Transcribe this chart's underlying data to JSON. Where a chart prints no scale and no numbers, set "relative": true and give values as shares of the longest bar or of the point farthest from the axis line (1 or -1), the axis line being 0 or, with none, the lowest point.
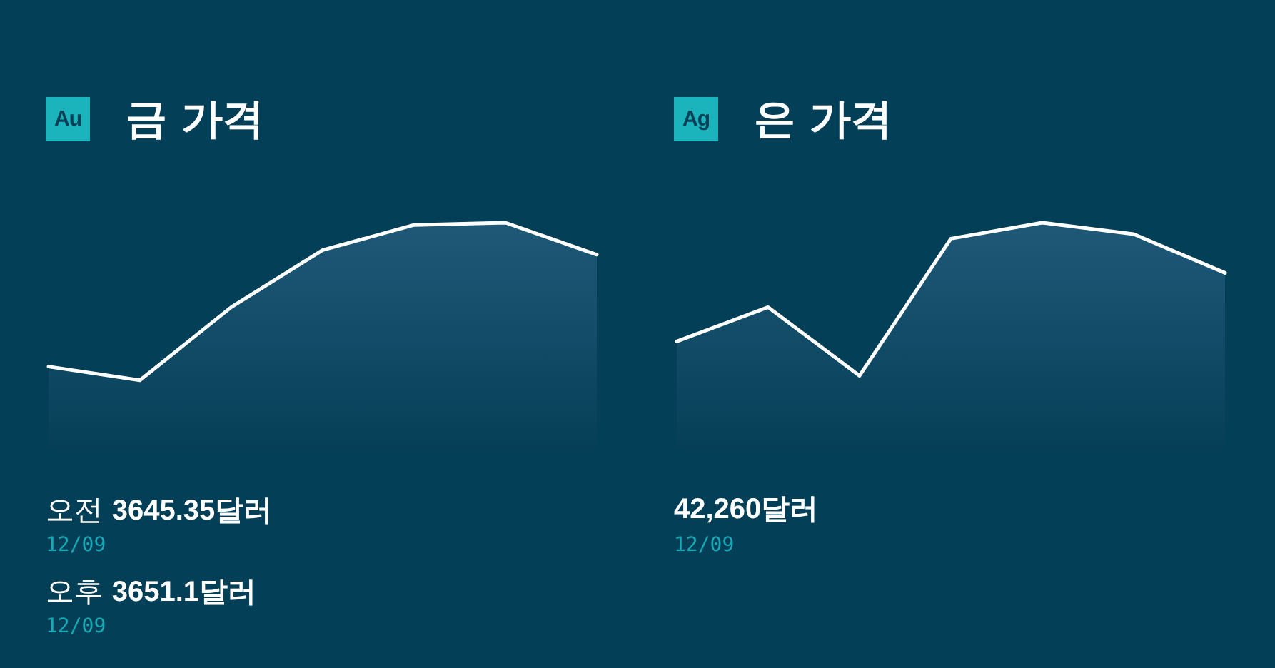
{
  "chart_data": [
    {
      "type": "area",
      "title": "금 가격",
      "categories": [
        null,
        null,
        null,
        null,
        null,
        null,
        null
      ],
      "values": [
        0.37,
        0.31,
        0.63,
        0.88,
        0.99,
        1,
        0.86
      ],
      "color": "#ffffff",
      "relative": true,
      "annotations": [
        "Au",
        "오전 3645.35달러",
        "12/09",
        "오후 3651.1달러",
        "12/09"
      ]
    },
    {
      "type": "area",
      "title": "은 가격",
      "categories": [
        null,
        null,
        null,
        null,
        null,
        null,
        null
      ],
      "values": [
        0.48,
        0.63,
        0.33,
        0.93,
        1,
        0.95,
        0.78
      ],
      "color": "#ffffff",
      "relative": true,
      "annotations": [
        "Ag",
        "42,260달러",
        "12/09"
      ]
    }
  ]
}
